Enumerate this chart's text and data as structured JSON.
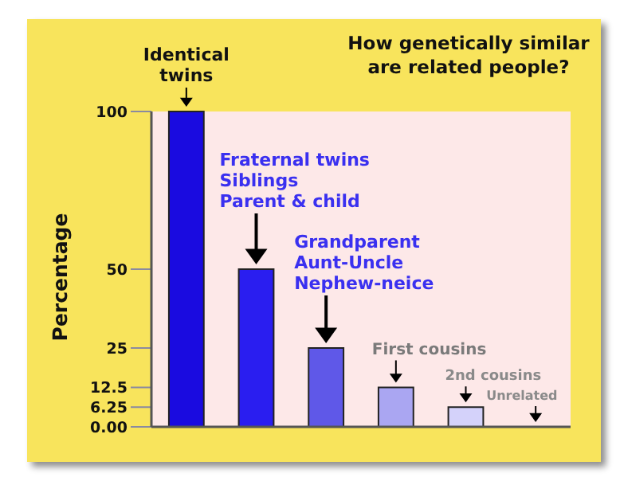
{
  "chart_data": {
    "type": "bar",
    "title": "How genetically similar\nare related people?",
    "ylabel": "Percentage",
    "categories": [
      null,
      null,
      null,
      null,
      null,
      null
    ],
    "values": [
      100,
      50,
      25,
      12.5,
      6.25,
      0
    ],
    "colors": [
      "#1a0be0",
      "#2a1ef0",
      "#5f58e8",
      "#aaa6f2",
      "#d4d2fa",
      "#d4d2fa"
    ],
    "ylim": [
      0,
      100
    ],
    "yticks": [
      {
        "value": 0,
        "label": "0.00"
      },
      6.25,
      12.5,
      25,
      50,
      100
    ],
    "grid": false,
    "annotations": [
      "Identical\ntwins",
      "Fraternal twins\nSiblings\nParent & child",
      "Grandparent\nAunt-Uncle\nNephew-neice",
      "First cousins",
      "2nd cousins",
      "Unrelated"
    ]
  }
}
